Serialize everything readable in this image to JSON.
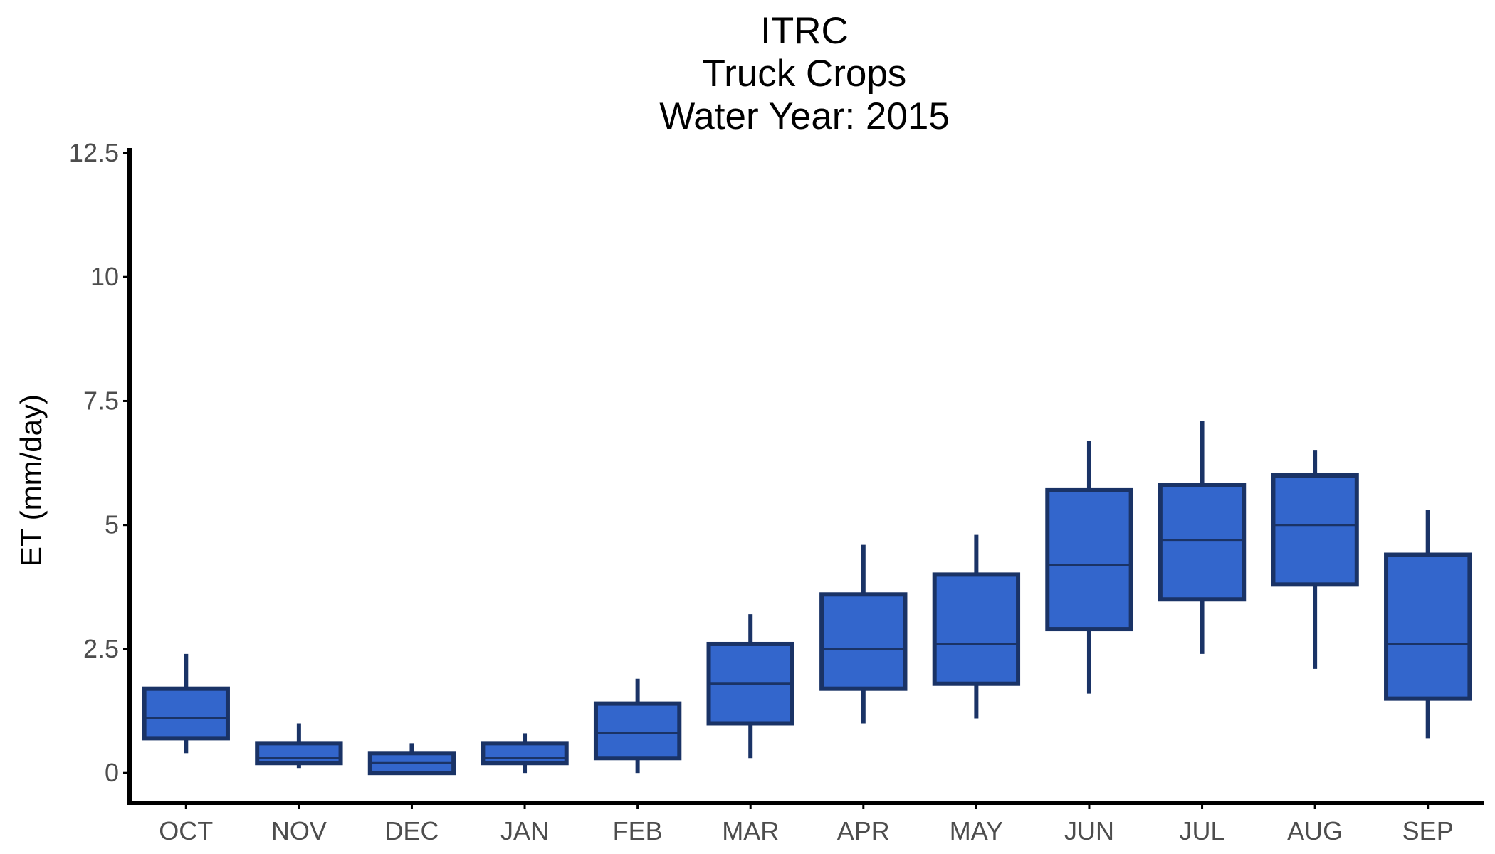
{
  "chart_data": {
    "type": "boxplot",
    "title": [
      "ITRC",
      "Truck Crops",
      "Water Year: 2015"
    ],
    "xlabel": "",
    "ylabel": "ET (mm/day)",
    "ylim": [
      -0.6,
      12.6
    ],
    "yticks": [
      0,
      2.5,
      5,
      7.5,
      10,
      12.5
    ],
    "ytick_labels": [
      "0",
      "2.5",
      "5",
      "7.5",
      "10",
      "12.5"
    ],
    "grid": false,
    "legend": "none",
    "categories": [
      "OCT",
      "NOV",
      "DEC",
      "JAN",
      "FEB",
      "MAR",
      "APR",
      "MAY",
      "JUN",
      "JUL",
      "AUG",
      "SEP"
    ],
    "boxes": [
      {
        "category": "OCT",
        "whisker_low": 0.4,
        "q1": 0.7,
        "median": 1.1,
        "q3": 1.7,
        "whisker_high": 2.4
      },
      {
        "category": "NOV",
        "whisker_low": 0.1,
        "q1": 0.2,
        "median": 0.3,
        "q3": 0.6,
        "whisker_high": 1.0
      },
      {
        "category": "DEC",
        "whisker_low": 0.0,
        "q1": 0.0,
        "median": 0.2,
        "q3": 0.4,
        "whisker_high": 0.6
      },
      {
        "category": "JAN",
        "whisker_low": 0.0,
        "q1": 0.2,
        "median": 0.3,
        "q3": 0.6,
        "whisker_high": 0.8
      },
      {
        "category": "FEB",
        "whisker_low": 0.0,
        "q1": 0.3,
        "median": 0.8,
        "q3": 1.4,
        "whisker_high": 1.9
      },
      {
        "category": "MAR",
        "whisker_low": 0.3,
        "q1": 1.0,
        "median": 1.8,
        "q3": 2.6,
        "whisker_high": 3.2
      },
      {
        "category": "APR",
        "whisker_low": 1.0,
        "q1": 1.7,
        "median": 2.5,
        "q3": 3.6,
        "whisker_high": 4.6
      },
      {
        "category": "MAY",
        "whisker_low": 1.1,
        "q1": 1.8,
        "median": 2.6,
        "q3": 4.0,
        "whisker_high": 4.8
      },
      {
        "category": "JUN",
        "whisker_low": 1.6,
        "q1": 2.9,
        "median": 4.2,
        "q3": 5.7,
        "whisker_high": 6.7
      },
      {
        "category": "JUL",
        "whisker_low": 2.4,
        "q1": 3.5,
        "median": 4.7,
        "q3": 5.8,
        "whisker_high": 7.1
      },
      {
        "category": "AUG",
        "whisker_low": 2.1,
        "q1": 3.8,
        "median": 5.0,
        "q3": 6.0,
        "whisker_high": 6.5
      },
      {
        "category": "SEP",
        "whisker_low": 0.7,
        "q1": 1.5,
        "median": 2.6,
        "q3": 4.4,
        "whisker_high": 5.3
      }
    ],
    "colors": {
      "box_fill": "#3366cc",
      "box_outline": "#1a3366",
      "axis": "#000000",
      "tick_text": "#4d4d4d",
      "title_text": "#000000"
    }
  }
}
